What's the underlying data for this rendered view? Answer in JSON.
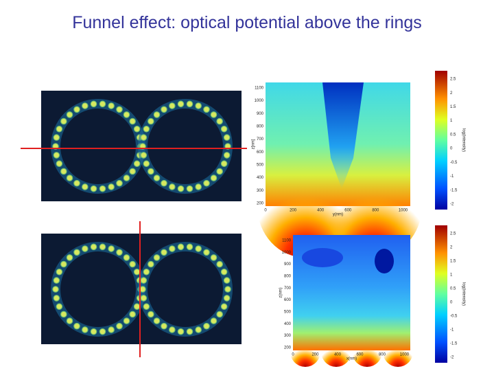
{
  "title": "Funnel effect: optical potential above the rings",
  "plots": [
    {
      "x_label": "y(nm)",
      "y_label": "z[nm]",
      "colorbar_label": "log(intensity)",
      "x_ticks": [
        "0",
        "200",
        "400",
        "600",
        "800",
        "1000"
      ],
      "y_ticks": [
        "200",
        "300",
        "400",
        "500",
        "600",
        "700",
        "800",
        "900",
        "1000",
        "1100"
      ],
      "colorbar_ticks": [
        "-2",
        "-1.5",
        "-1",
        "-0.5",
        "0",
        "0.5",
        "1",
        "1.5",
        "2",
        "2.5"
      ]
    },
    {
      "x_label": "x(nm)",
      "y_label": "z(nm)",
      "colorbar_label": "log(intensity)",
      "x_ticks": [
        "0",
        "200",
        "400",
        "600",
        "800",
        "1000"
      ],
      "y_ticks": [
        "200",
        "300",
        "400",
        "500",
        "600",
        "700",
        "800",
        "900",
        "1000",
        "1100"
      ],
      "colorbar_ticks": [
        "-2",
        "-1.5",
        "-1",
        "-0.5",
        "0",
        "0.5",
        "1",
        "1.5",
        "2",
        "2.5"
      ]
    }
  ]
}
